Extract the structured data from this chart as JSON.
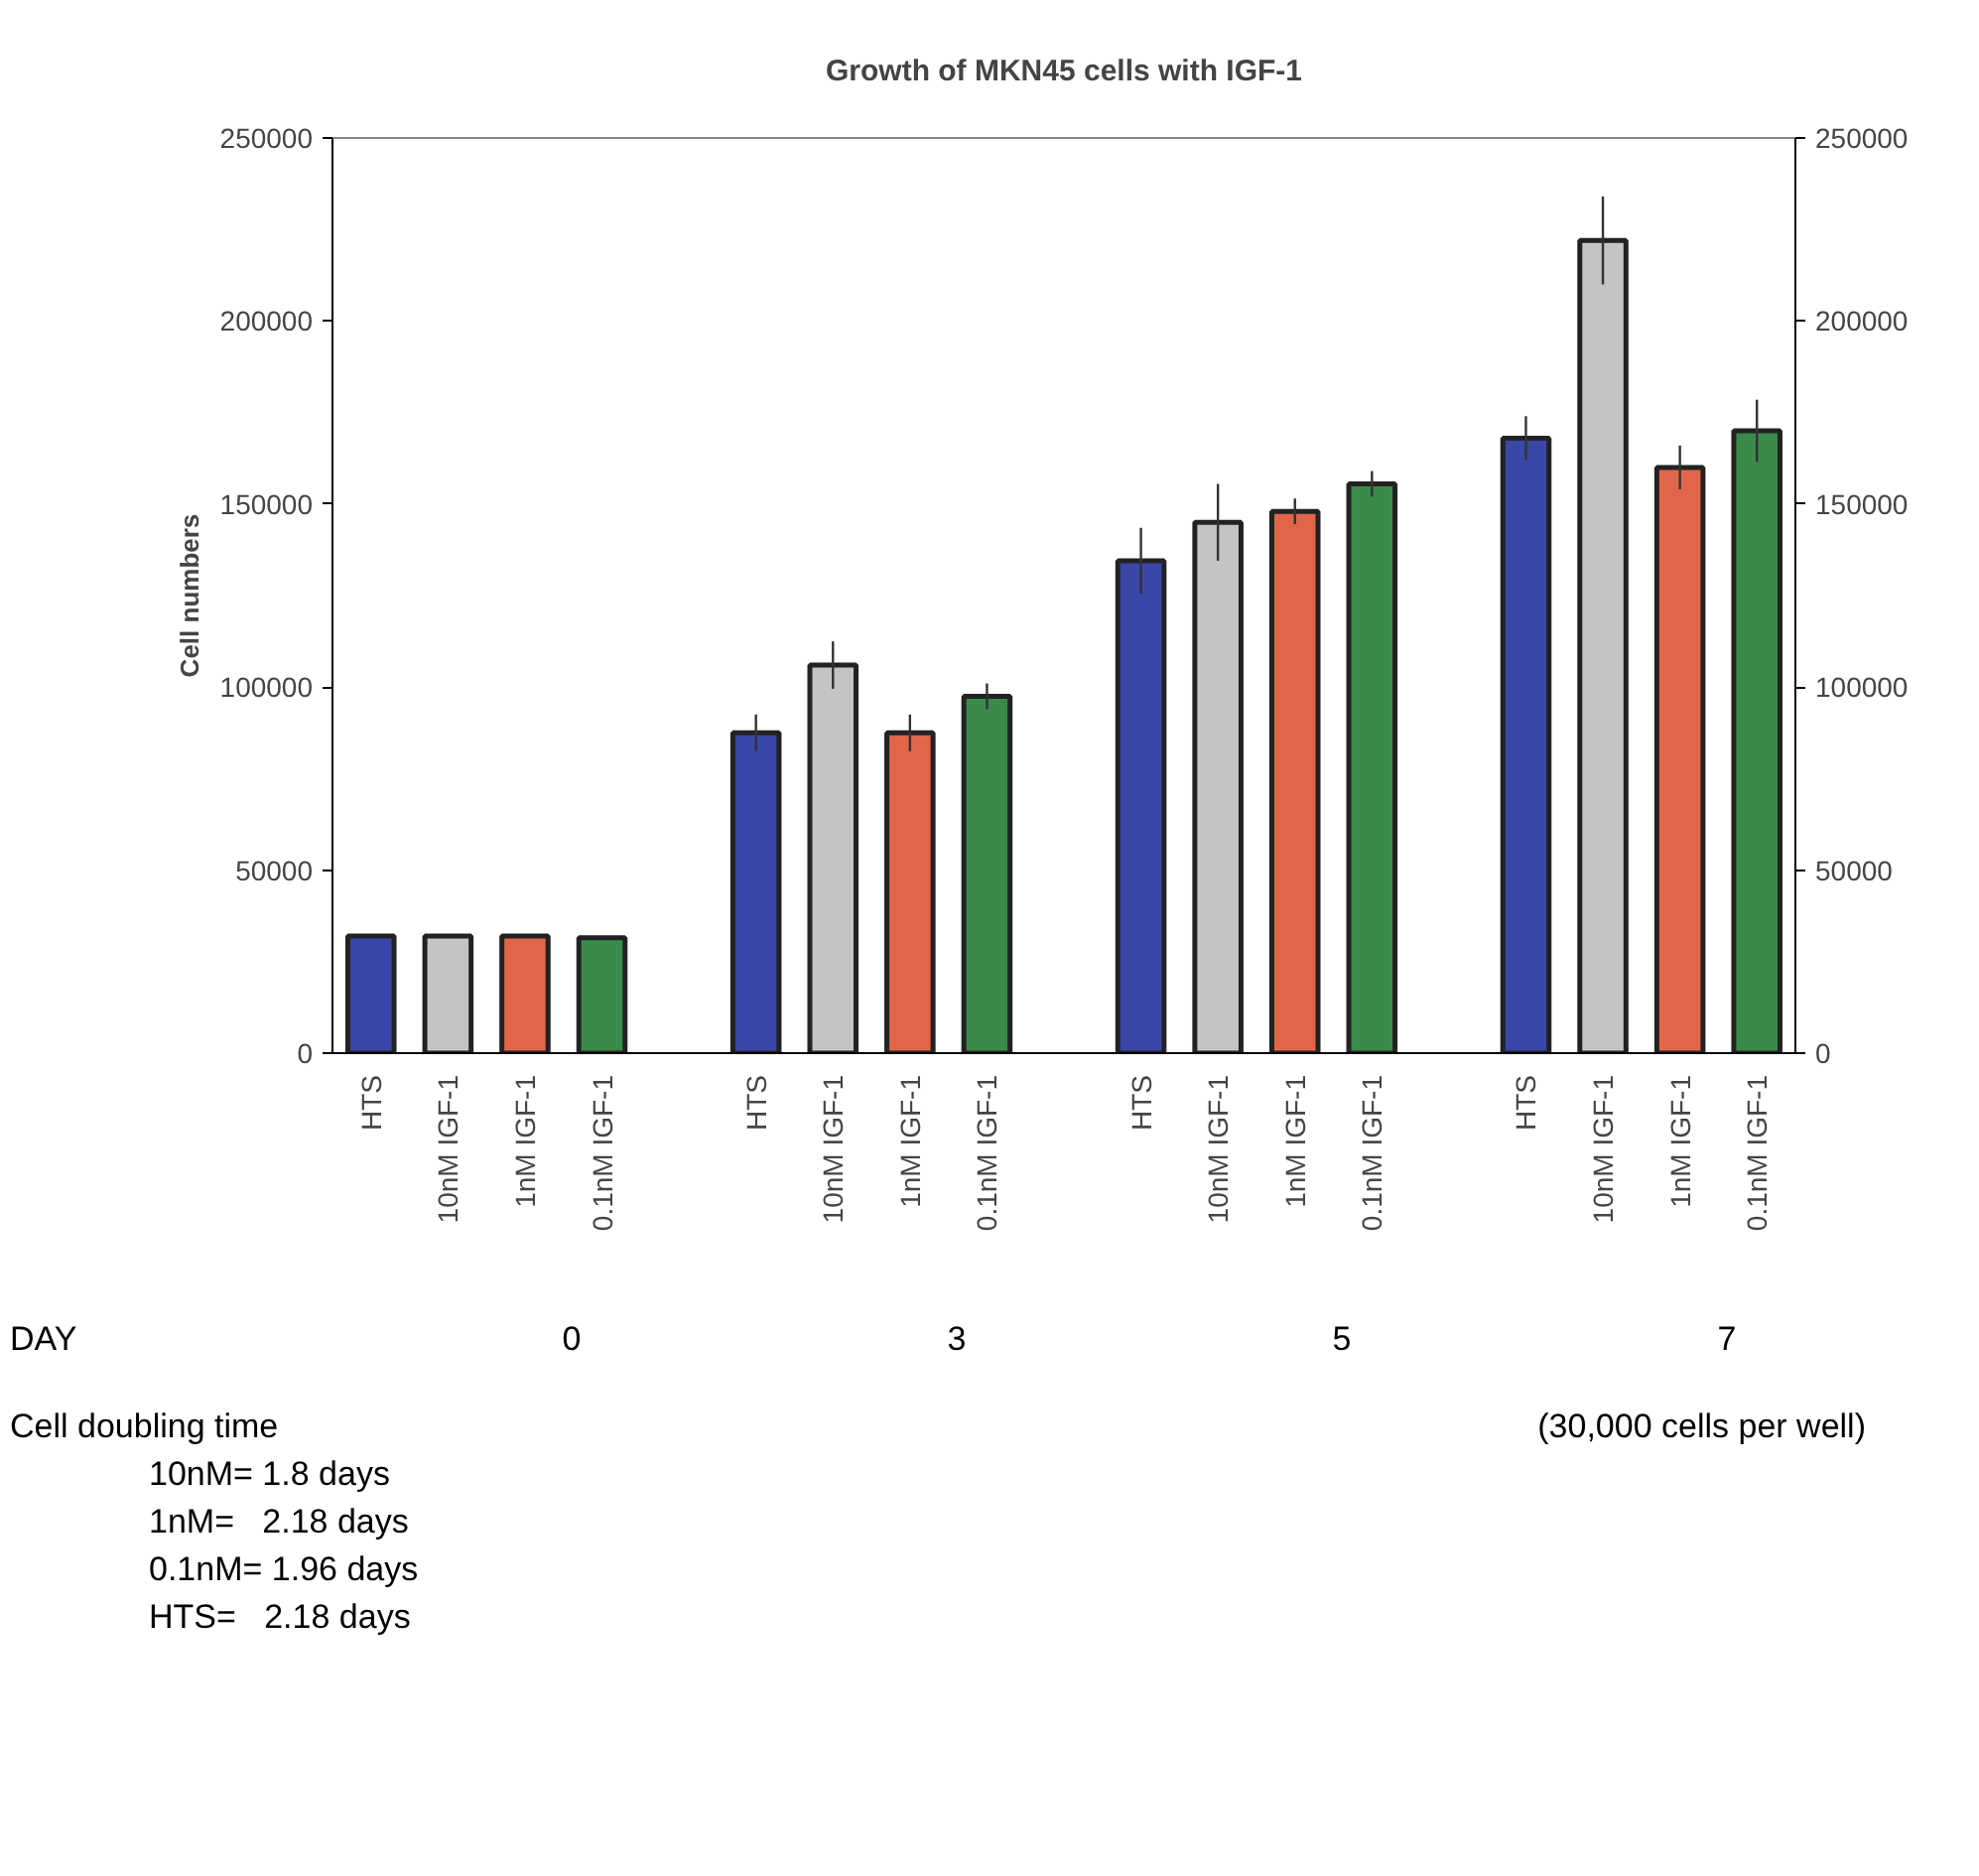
{
  "chart_data": {
    "type": "bar",
    "title": "Growth of MKN45 cells with IGF-1",
    "ylabel": "Cell numbers",
    "categories": [
      "HTS",
      "10nM IGF-1",
      "1nM IGF-1",
      "0.1nM IGF-1",
      null,
      "HTS",
      "10nM IGF-1",
      "1nM IGF-1",
      "0.1nM IGF-1",
      null,
      "HTS",
      "10nM IGF-1",
      "1nM IGF-1",
      "0.1nM IGF-1",
      null,
      "HTS",
      "10nM IGF-1",
      "1nM IGF-1",
      "0.1nM IGF-1"
    ],
    "values": [
      32000,
      32000,
      32000,
      31500,
      null,
      87500,
      106000,
      87500,
      97500,
      null,
      134500,
      145000,
      148000,
      155500,
      null,
      168000,
      222000,
      160000,
      170000
    ],
    "errors": [
      null,
      null,
      null,
      null,
      null,
      5000,
      6500,
      5000,
      3500,
      null,
      9000,
      10500,
      3500,
      3500,
      null,
      6000,
      12000,
      6000,
      8500
    ],
    "colors": [
      "#3a47a8",
      "#c4c4c4",
      "#e0664a",
      "#3a8a4a",
      null,
      "#3a47a8",
      "#c4c4c4",
      "#e0664a",
      "#3a8a4a",
      null,
      "#3a47a8",
      "#c4c4c4",
      "#e0664a",
      "#3a8a4a",
      null,
      "#3a47a8",
      "#c4c4c4",
      "#e0664a",
      "#3a8a4a"
    ],
    "ylim": [
      0,
      250000
    ],
    "yticks": [
      0,
      50000,
      100000,
      150000,
      200000,
      250000
    ],
    "y2lim": [
      0,
      250000
    ],
    "y2ticks": [
      0,
      50000,
      100000,
      150000,
      200000,
      250000
    ],
    "grid": false,
    "annotations": [
      "DAY",
      "0",
      "3",
      "5",
      "7",
      "Cell doubling time",
      "(30,000 cells per well)",
      "10nM= 1.8 days",
      "1nM=   2.18 days",
      "0.1nM= 1.96 days",
      "HTS=   2.18 days"
    ]
  }
}
